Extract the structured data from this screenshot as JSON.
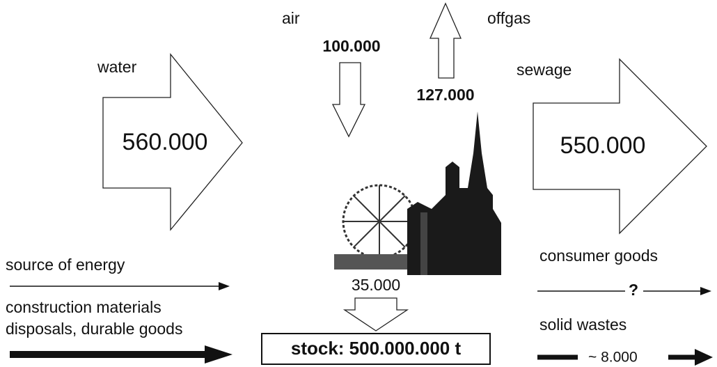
{
  "inputs": {
    "water": {
      "label": "water",
      "amount": "560.000"
    },
    "air": {
      "label": "air",
      "amount": "100.000"
    },
    "energy": {
      "label": "source of energy"
    },
    "materials": {
      "lines": [
        "construction materials",
        "disposals, durable goods"
      ]
    }
  },
  "outputs": {
    "offgas": {
      "label": "offgas",
      "amount": "127.000"
    },
    "sewage": {
      "label": "sewage",
      "amount": "550.000"
    },
    "consumer_goods": {
      "label": "consumer goods",
      "amount": "?"
    },
    "solid_wastes": {
      "label": "solid wastes",
      "amount": "~ 8.000"
    }
  },
  "stock": {
    "inflow": "35.000",
    "label": "stock: 500.000.000 t"
  }
}
